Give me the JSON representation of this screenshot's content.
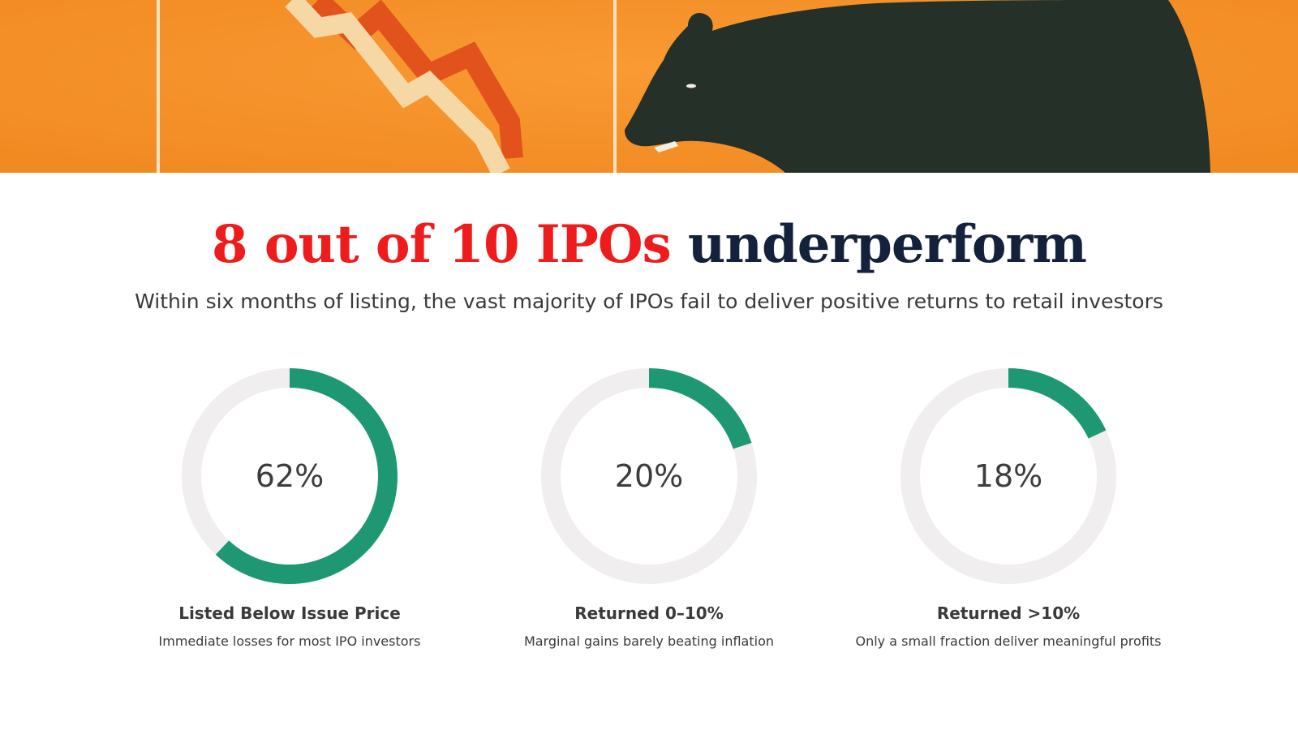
{
  "colors": {
    "accent_red": "#ee1c1c",
    "navy": "#14213d",
    "donut_fill": "#1e9873",
    "donut_track": "#f0eeee",
    "hero_orange": "#f7932b",
    "bear": "#253029"
  },
  "hero": {
    "icon": "bear-market-illustration"
  },
  "headline": {
    "accent": "8 out of 10 IPOs",
    "rest": "underperform"
  },
  "subtitle": "Within six months of listing, the vast majority of IPOs fail to deliver positive returns to retail investors",
  "chart_data": [
    {
      "type": "pie",
      "style": "donut",
      "value": 62,
      "value_label": "62%",
      "title": "Listed Below Issue Price",
      "subtitle": "Immediate losses for most IPO investors"
    },
    {
      "type": "pie",
      "style": "donut",
      "value": 20,
      "value_label": "20%",
      "title": "Returned 0–10%",
      "subtitle": "Marginal gains barely beating inflation"
    },
    {
      "type": "pie",
      "style": "donut",
      "value": 18,
      "value_label": "18%",
      "title": "Returned >10%",
      "subtitle": "Only a small fraction deliver meaningful profits"
    }
  ]
}
